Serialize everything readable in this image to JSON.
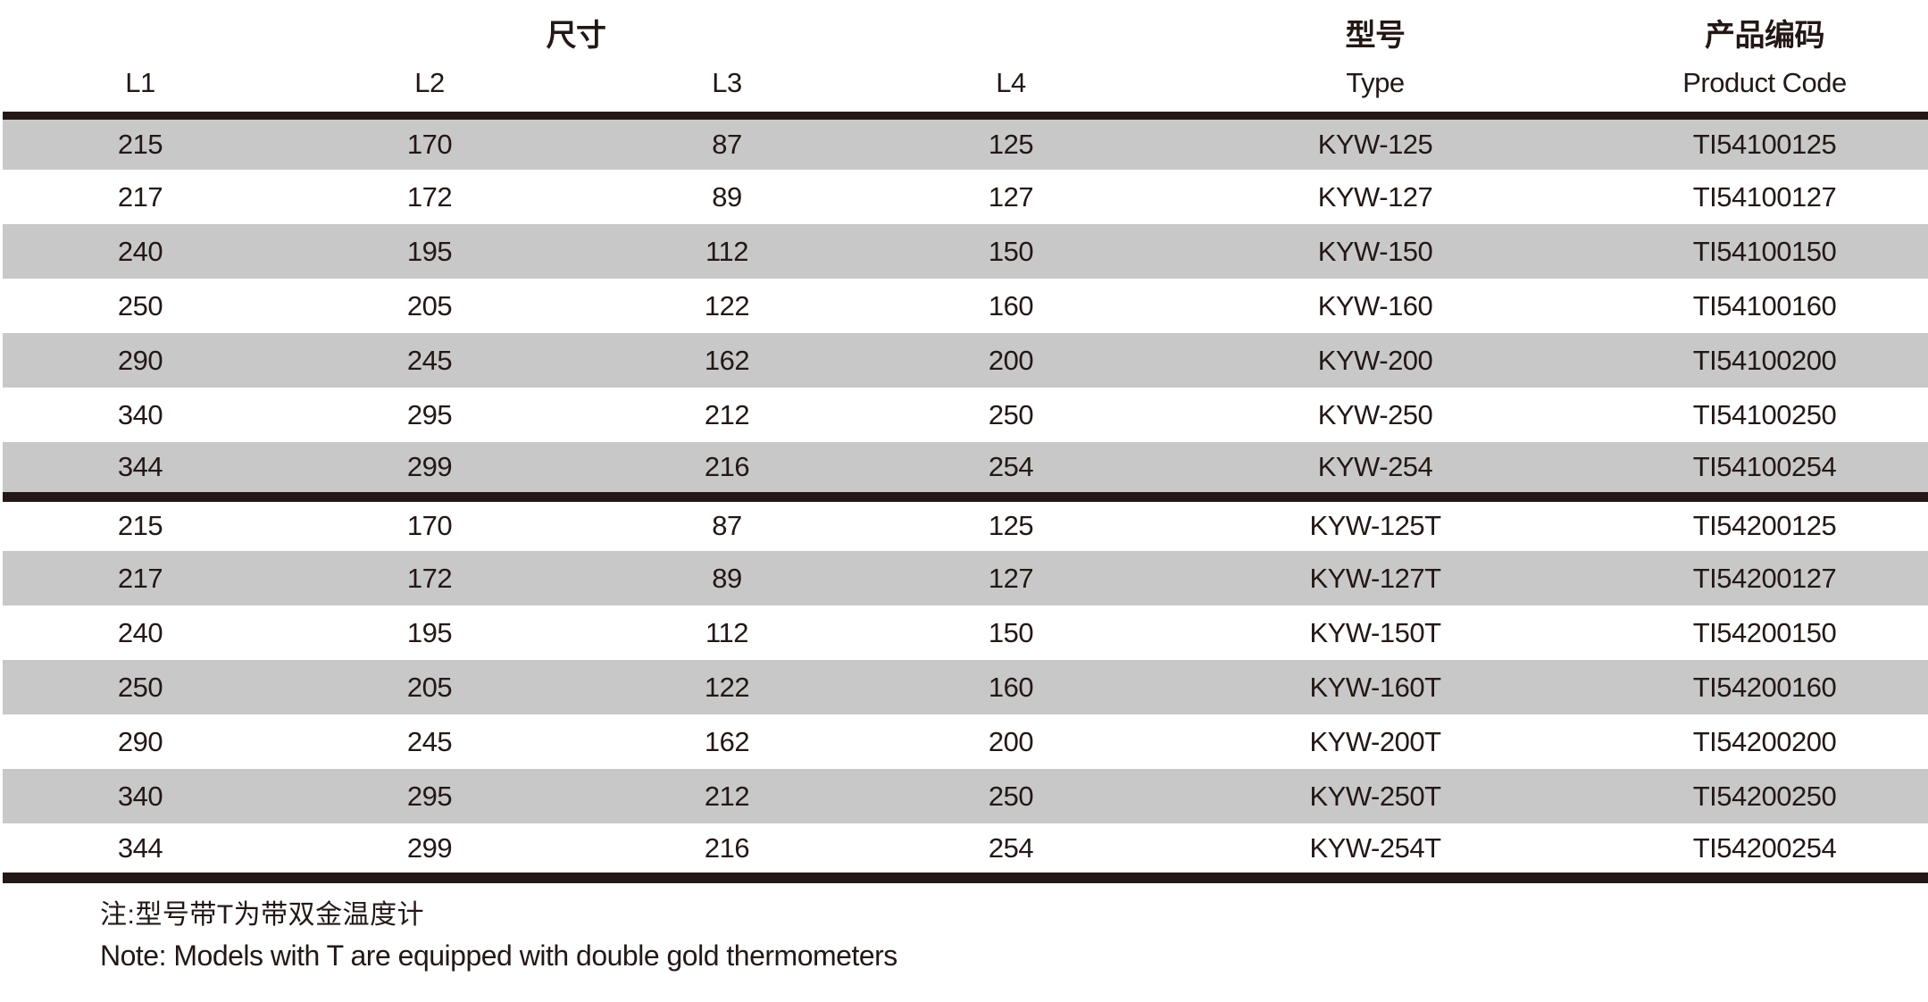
{
  "table": {
    "header": {
      "dimensions_label": "尺寸",
      "type_label_cn": "型号",
      "type_label_en": "Type",
      "code_label_cn": "产品编码",
      "code_label_en": "Product Code",
      "l1": "L1",
      "l2": "L2",
      "l3": "L3",
      "l4": "L4"
    },
    "rows": [
      {
        "l1": "215",
        "l2": "170",
        "l3": "87",
        "l4": "125",
        "type": "KYW-125",
        "code": "TI54100125"
      },
      {
        "l1": "217",
        "l2": "172",
        "l3": "89",
        "l4": "127",
        "type": "KYW-127",
        "code": "TI54100127"
      },
      {
        "l1": "240",
        "l2": "195",
        "l3": "112",
        "l4": "150",
        "type": "KYW-150",
        "code": "TI54100150"
      },
      {
        "l1": "250",
        "l2": "205",
        "l3": "122",
        "l4": "160",
        "type": "KYW-160",
        "code": "TI54100160"
      },
      {
        "l1": "290",
        "l2": "245",
        "l3": "162",
        "l4": "200",
        "type": "KYW-200",
        "code": "TI54100200"
      },
      {
        "l1": "340",
        "l2": "295",
        "l3": "212",
        "l4": "250",
        "type": "KYW-250",
        "code": "TI54100250"
      },
      {
        "l1": "344",
        "l2": "299",
        "l3": "216",
        "l4": "254",
        "type": "KYW-254",
        "code": "TI54100254"
      },
      {
        "l1": "215",
        "l2": "170",
        "l3": "87",
        "l4": "125",
        "type": "KYW-125T",
        "code": "TI54200125"
      },
      {
        "l1": "217",
        "l2": "172",
        "l3": "89",
        "l4": "127",
        "type": "KYW-127T",
        "code": "TI54200127"
      },
      {
        "l1": "240",
        "l2": "195",
        "l3": "112",
        "l4": "150",
        "type": "KYW-150T",
        "code": "TI54200150"
      },
      {
        "l1": "250",
        "l2": "205",
        "l3": "122",
        "l4": "160",
        "type": "KYW-160T",
        "code": "TI54200160"
      },
      {
        "l1": "290",
        "l2": "245",
        "l3": "162",
        "l4": "200",
        "type": "KYW-200T",
        "code": "TI54200200"
      },
      {
        "l1": "340",
        "l2": "295",
        "l3": "212",
        "l4": "250",
        "type": "KYW-250T",
        "code": "TI54200250"
      },
      {
        "l1": "344",
        "l2": "299",
        "l3": "216",
        "l4": "254",
        "type": "KYW-254T",
        "code": "TI54200254"
      }
    ]
  },
  "note": {
    "line_cn": "注:型号带T为带双金温度计",
    "line_en": "Note: Models with T are equipped with double gold thermometers"
  },
  "colors": {
    "text_ink": "#231815",
    "row_stripe": "#c8c8c9",
    "divider_bar": "#231815"
  }
}
